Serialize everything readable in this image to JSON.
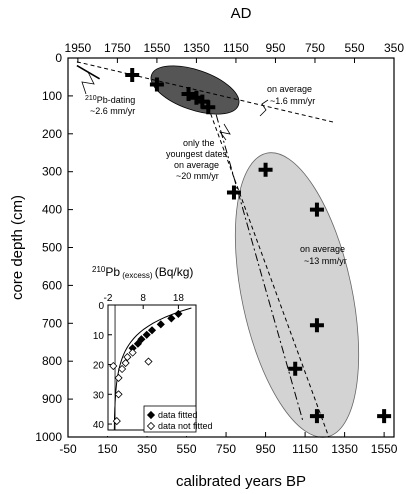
{
  "chart_data": [
    {
      "type": "scatter",
      "xlabel_bottom": "calibrated years BP",
      "xlabel_top": "AD",
      "ylabel": "core depth (cm)",
      "xlim": [
        -50,
        1600
      ],
      "ylim": [
        1000,
        0
      ],
      "y_reversed": true,
      "xticks_bottom": [
        "-50",
        "150",
        "350",
        "550",
        "750",
        "950",
        "1150",
        "1350",
        "1550"
      ],
      "xticks_top": [
        "1950",
        "1750",
        "1550",
        "1350",
        "1150",
        "950",
        "750",
        "550",
        "350"
      ],
      "yticks": [
        "0",
        "100",
        "200",
        "300",
        "400",
        "500",
        "600",
        "700",
        "800",
        "900",
        "1000"
      ],
      "series": [
        {
          "marker": "cross",
          "x": [
            275,
            400,
            560,
            600,
            630,
            660,
            790,
            950,
            1210,
            1210,
            1100,
            1210,
            1550
          ],
          "y": [
            45,
            70,
            95,
            105,
            115,
            130,
            355,
            295,
            400,
            705,
            820,
            945,
            945
          ]
        }
      ],
      "regions": [
        {
          "shape": "ellipse",
          "color": "#555555",
          "group": "upper"
        },
        {
          "shape": "ellipse",
          "color": "#d3d3d3",
          "group": "lower"
        }
      ],
      "lines": [
        {
          "style": "solid",
          "points": [
            [
              -5,
              20
            ],
            [
              110,
              55
            ]
          ]
        },
        {
          "style": "dashed",
          "points": [
            [
              -5,
              10
            ],
            [
              1300,
              170
            ]
          ]
        },
        {
          "style": "dashed",
          "points": [
            [
              660,
              130
            ],
            [
              1270,
              1000
            ]
          ]
        },
        {
          "style": "dashdot",
          "points": [
            [
              700,
              150
            ],
            [
              1140,
              960
            ]
          ]
        }
      ],
      "annotations": [
        {
          "text": "210",
          "text2": "Pb-dating",
          "text3": "~2.6 mm/yr"
        },
        {
          "text": "on average",
          "text2": "~1.6 mm/yr"
        },
        {
          "text": "only the",
          "text2": "youngest dates",
          "text3": "on average",
          "text4": "~20 mm/yr"
        },
        {
          "text": "on average",
          "text2": "~13 mm/yr"
        }
      ]
    },
    {
      "type": "scatter",
      "title_sup": "210",
      "title_main": "Pb",
      "title_sub": "(excess)",
      "title_unit": "(Bq/kg)",
      "xlim": [
        -2,
        23
      ],
      "ylim": [
        42,
        0
      ],
      "xticks": [
        "-2",
        "8",
        "18"
      ],
      "xticks_values": [
        -2,
        8,
        18
      ],
      "yticks": [
        "0",
        "10",
        "20",
        "30",
        "40"
      ],
      "legend": [
        "data fitted",
        "data not fitted"
      ],
      "legend_position": "bottom-right",
      "series": [
        {
          "name": "data fitted",
          "marker": "filled-diamond",
          "x": [
            18,
            16,
            13,
            10.5,
            9,
            7.5,
            6.5,
            5
          ],
          "y": [
            3,
            4.5,
            6.5,
            8.5,
            10,
            11.5,
            13,
            14.5
          ]
        },
        {
          "name": "data not fitted",
          "marker": "open-diamond",
          "x": [
            5,
            3.5,
            3,
            9.5,
            2,
            1,
            1,
            -0.5,
            0.5
          ],
          "y": [
            16,
            17.5,
            19.5,
            19,
            21.5,
            24.5,
            30,
            20.5,
            39
          ]
        }
      ],
      "fit_curve": {
        "style": "solid"
      }
    }
  ]
}
